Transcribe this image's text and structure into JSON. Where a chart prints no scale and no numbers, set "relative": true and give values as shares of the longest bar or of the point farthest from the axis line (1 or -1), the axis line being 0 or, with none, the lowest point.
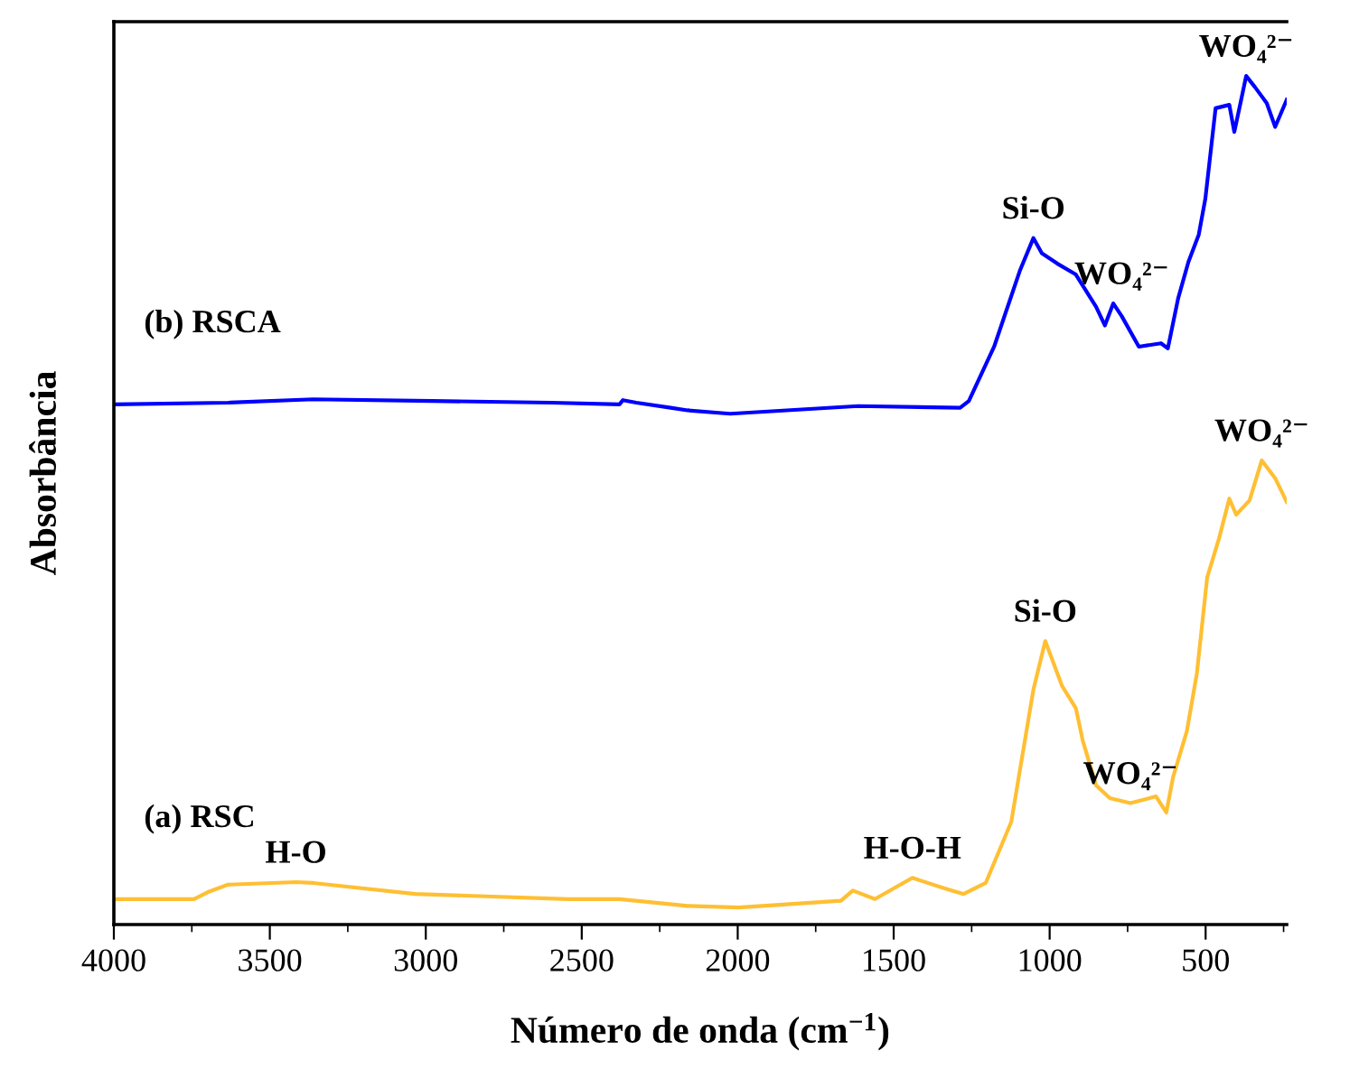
{
  "chart_data": {
    "type": "line",
    "relative": true,
    "xlabel": "Número de onda (cm$^{−1}$)",
    "ylabel": "Absorbância",
    "xlim": [
      4000,
      240
    ],
    "xticks": [
      4000,
      3500,
      3000,
      2500,
      2000,
      1500,
      1000,
      500
    ],
    "grid": false,
    "legend": false,
    "marker": "none",
    "line_style": "solid",
    "series": [
      {
        "name": "(b) RSCA",
        "color": "#0000ff",
        "x": [
          4000,
          3634,
          3361,
          2979,
          2597,
          2379,
          2368,
          2325,
          2215,
          2161,
          2024,
          1614,
          1287,
          1259,
          1178,
          1096,
          1052,
          1025,
          976,
          916,
          851,
          823,
          796,
          769,
          714,
          643,
          621,
          588,
          555,
          522,
          501,
          468,
          424,
          408,
          386,
          370,
          342,
          304,
          277,
          240
        ],
        "values": [
          0.613,
          0.615,
          0.619,
          0.617,
          0.615,
          0.613,
          0.618,
          0.615,
          0.609,
          0.606,
          0.602,
          0.611,
          0.609,
          0.617,
          0.681,
          0.77,
          0.809,
          0.791,
          0.779,
          0.766,
          0.728,
          0.706,
          0.732,
          0.717,
          0.681,
          0.685,
          0.679,
          0.738,
          0.781,
          0.813,
          0.855,
          0.962,
          0.966,
          0.934,
          0.972,
          1.0,
          0.987,
          0.968,
          0.94,
          0.972
        ]
      },
      {
        "name": "(a) RSC",
        "color": "#ffbf33",
        "x": [
          4000,
          3743,
          3700,
          3634,
          3416,
          3361,
          3034,
          2543,
          2379,
          2160,
          1997,
          1669,
          1631,
          1560,
          1440,
          1341,
          1276,
          1205,
          1123,
          1052,
          1014,
          960,
          916,
          894,
          851,
          807,
          741,
          659,
          626,
          604,
          560,
          528,
          495,
          457,
          424,
          402,
          359,
          320,
          277,
          240
        ],
        "values": [
          0.03,
          0.03,
          0.038,
          0.047,
          0.05,
          0.049,
          0.036,
          0.03,
          0.03,
          0.022,
          0.02,
          0.028,
          0.04,
          0.03,
          0.055,
          0.043,
          0.036,
          0.049,
          0.121,
          0.277,
          0.334,
          0.281,
          0.255,
          0.217,
          0.164,
          0.149,
          0.143,
          0.151,
          0.132,
          0.174,
          0.228,
          0.296,
          0.409,
          0.455,
          0.502,
          0.483,
          0.5,
          0.547,
          0.526,
          0.498
        ]
      }
    ],
    "annotations": [
      {
        "text": "H-O",
        "x": 3416,
        "y": 0.05
      },
      {
        "text": "H-O-H",
        "x": 1440,
        "y": 0.055
      },
      {
        "text": "Si-O",
        "x": 1014,
        "y": 0.334
      },
      {
        "text": "WO₄²⁻",
        "x": 741,
        "y": 0.143
      },
      {
        "text": "WO₄²⁻",
        "x": 320,
        "y": 0.547
      },
      {
        "text": "Si-O",
        "x": 1052,
        "y": 0.809
      },
      {
        "text": "WO₄²⁻",
        "x": 769,
        "y": 0.732
      },
      {
        "text": "WO₄²⁻",
        "x": 370,
        "y": 1.0
      }
    ]
  }
}
